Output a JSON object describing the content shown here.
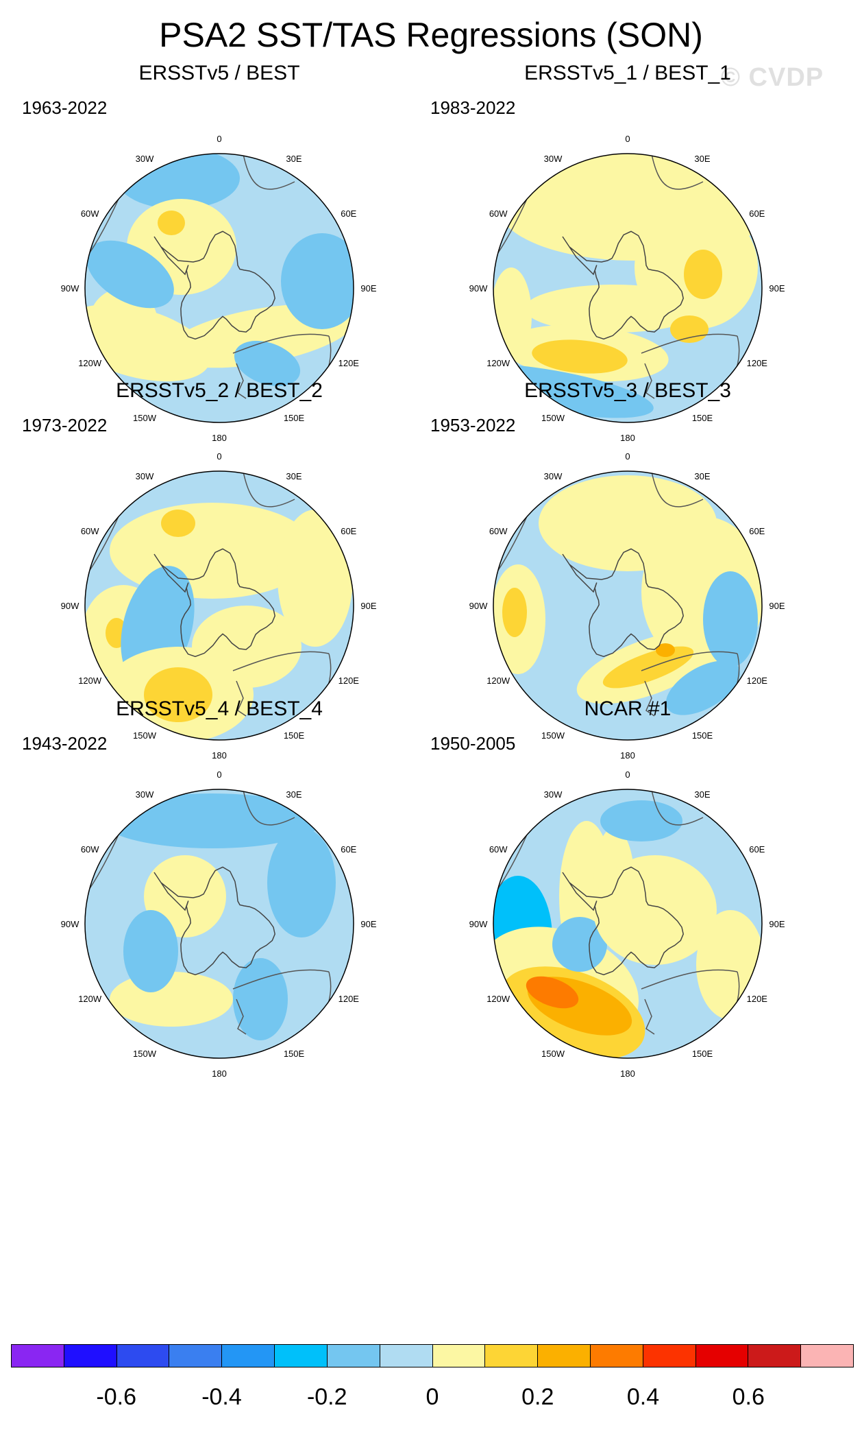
{
  "title": "PSA2 SST/TAS Regressions (SON)",
  "watermark": "© CVDP",
  "lon_labels": [
    "0",
    "30E",
    "60E",
    "90E",
    "120E",
    "150E",
    "180",
    "150W",
    "120W",
    "90W",
    "60W",
    "30W"
  ],
  "panels": [
    {
      "title": "ERSSTv5 / BEST",
      "period": "1963-2022"
    },
    {
      "title": "ERSSTv5_1 / BEST_1",
      "period": "1983-2022"
    },
    {
      "title": "ERSSTv5_2 / BEST_2",
      "period": "1973-2022"
    },
    {
      "title": "ERSSTv5_3 / BEST_3",
      "period": "1953-2022"
    },
    {
      "title": "ERSSTv5_4 / BEST_4",
      "period": "1943-2022"
    },
    {
      "title": "NCAR #1",
      "period": "1950-2005"
    }
  ],
  "colorbar": {
    "colors": [
      "#8a26f2",
      "#1f0fff",
      "#2d4bf0",
      "#3a7ff0",
      "#2396f5",
      "#00c0fa",
      "#74c6f0",
      "#b0dcf2",
      "#fcf7a3",
      "#fdd535",
      "#fbb000",
      "#fd7b00",
      "#fc3300",
      "#e50000",
      "#cc1a1a",
      "#fbb4b4"
    ],
    "tick_labels": [
      "-0.6",
      "-0.4",
      "-0.2",
      "0",
      "0.2",
      "0.4",
      "0.6"
    ]
  }
}
